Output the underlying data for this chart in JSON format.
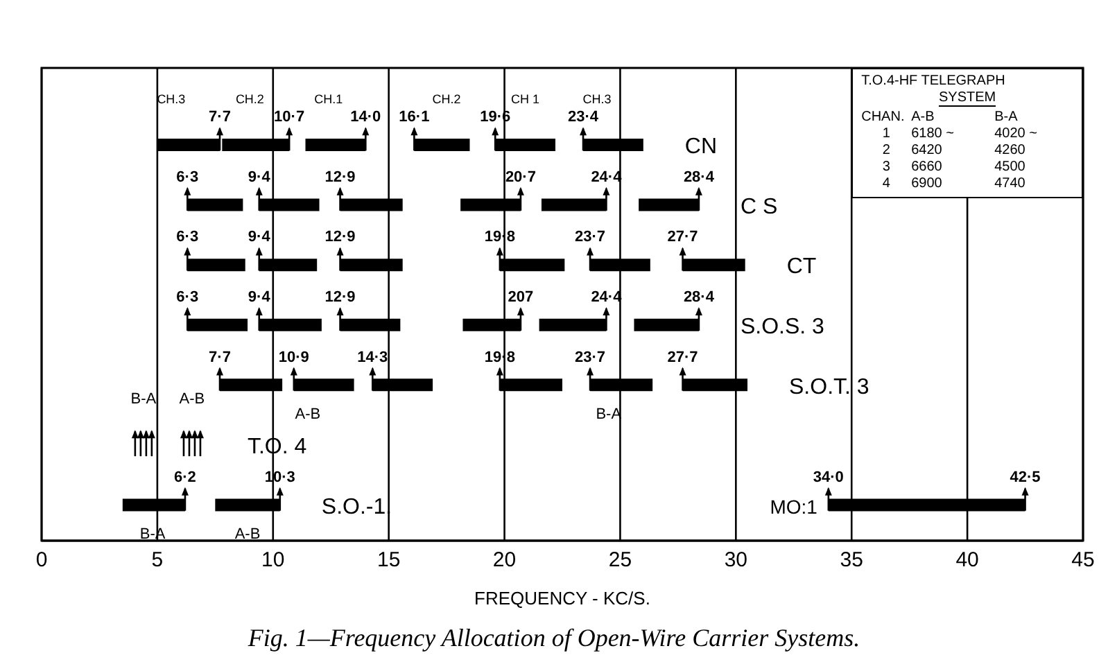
{
  "chart_data": {
    "type": "bar",
    "orientation": "horizontal",
    "title": "Fig. 1—Frequency Allocation of Open-Wire Carrier Systems.",
    "xlabel": "FREQUENCY -  KC/S.",
    "categories": [
      "CN",
      "C S",
      "CT",
      "S.O.S. 3",
      "S.O.T. 3",
      "T.O. 4",
      "S.O.-1."
    ],
    "xlim": [
      0,
      45
    ],
    "xticks": [
      0,
      5,
      10,
      15,
      20,
      25,
      30,
      35,
      40,
      45
    ],
    "grid": "x",
    "tick_labels": "x",
    "series": [
      {
        "color": "#000000",
        "base": [
          5.0,
          6.3,
          6.3,
          6.3,
          7.7,
          null,
          3.5
        ],
        "values": [
          2.7,
          2.4,
          2.5,
          2.6,
          2.7,
          null,
          2.7
        ]
      },
      {
        "color": "#000000",
        "base": [
          7.8,
          9.4,
          9.4,
          9.4,
          10.9,
          null,
          7.5
        ],
        "values": [
          2.9,
          2.6,
          2.5,
          2.7,
          2.6,
          null,
          2.8
        ]
      },
      {
        "color": "#000000",
        "base": [
          11.4,
          12.9,
          12.9,
          12.9,
          14.3,
          null,
          null
        ],
        "values": [
          2.6,
          2.7,
          2.7,
          2.6,
          2.6,
          null,
          null
        ]
      },
      {
        "color": "#000000",
        "base": [
          16.1,
          18.1,
          19.8,
          18.2,
          19.8,
          null,
          null
        ],
        "values": [
          2.4,
          2.6,
          2.8,
          2.5,
          2.7,
          null,
          null
        ]
      },
      {
        "color": "#000000",
        "base": [
          19.6,
          21.6,
          23.7,
          21.5,
          23.7,
          null,
          null
        ],
        "values": [
          2.6,
          2.8,
          2.6,
          2.9,
          2.7,
          null,
          null
        ]
      },
      {
        "color": "#000000",
        "base": [
          23.4,
          25.8,
          27.7,
          25.6,
          27.7,
          null,
          null
        ],
        "values": [
          2.6,
          2.6,
          2.7,
          2.8,
          2.8,
          null,
          null
        ]
      },
      {
        "name": "MO:1",
        "color": "#000000",
        "base": [
          null,
          null,
          null,
          null,
          null,
          null,
          34.0
        ],
        "values": [
          null,
          null,
          null,
          null,
          null,
          null,
          8.5
        ]
      }
    ],
    "annotations": [
      {
        "text": "7·7",
        "x": 7.7,
        "y": "CN"
      },
      {
        "text": "10·7",
        "x": 10.7,
        "y": "CN"
      },
      {
        "text": "14·0",
        "x": 14.0,
        "y": "CN"
      },
      {
        "text": "16·1",
        "x": 16.1,
        "y": "CN"
      },
      {
        "text": "19·6",
        "x": 19.6,
        "y": "CN"
      },
      {
        "text": "23·4",
        "x": 23.4,
        "y": "CN"
      },
      {
        "text": "6·3",
        "x": 6.3,
        "y": "C S"
      },
      {
        "text": "9·4",
        "x": 9.4,
        "y": "C S"
      },
      {
        "text": "12·9",
        "x": 12.9,
        "y": "C S"
      },
      {
        "text": "20·7",
        "x": 20.7,
        "y": "C S"
      },
      {
        "text": "24·4",
        "x": 24.4,
        "y": "C S"
      },
      {
        "text": "28·4",
        "x": 28.4,
        "y": "C S"
      },
      {
        "text": "6·3",
        "x": 6.3,
        "y": "CT"
      },
      {
        "text": "9·4",
        "x": 9.4,
        "y": "CT"
      },
      {
        "text": "12·9",
        "x": 12.9,
        "y": "CT"
      },
      {
        "text": "19·8",
        "x": 19.8,
        "y": "CT"
      },
      {
        "text": "23·7",
        "x": 23.7,
        "y": "CT"
      },
      {
        "text": "27·7",
        "x": 27.7,
        "y": "CT"
      },
      {
        "text": "6·3",
        "x": 6.3,
        "y": "S.O.S. 3"
      },
      {
        "text": "9·4",
        "x": 9.4,
        "y": "S.O.S. 3"
      },
      {
        "text": "12·9",
        "x": 12.9,
        "y": "S.O.S. 3"
      },
      {
        "text": "207",
        "x": 20.7,
        "y": "S.O.S. 3"
      },
      {
        "text": "24·4",
        "x": 24.4,
        "y": "S.O.S. 3"
      },
      {
        "text": "28·4",
        "x": 28.4,
        "y": "S.O.S. 3"
      },
      {
        "text": "7·7",
        "x": 7.7,
        "y": "S.O.T. 3"
      },
      {
        "text": "10·9",
        "x": 10.9,
        "y": "S.O.T. 3"
      },
      {
        "text": "14·3",
        "x": 14.3,
        "y": "S.O.T. 3"
      },
      {
        "text": "19·8",
        "x": 19.8,
        "y": "S.O.T. 3"
      },
      {
        "text": "23·7",
        "x": 23.7,
        "y": "S.O.T. 3"
      },
      {
        "text": "27·7",
        "x": 27.7,
        "y": "S.O.T. 3"
      },
      {
        "text": "6·2",
        "x": 6.2,
        "y": "S.O.-1."
      },
      {
        "text": "10·3",
        "x": 10.3,
        "y": "S.O.-1."
      },
      {
        "text": "34·0",
        "x": 34.0,
        "y": "S.O.-1."
      },
      {
        "text": "42·5",
        "x": 42.5,
        "y": "S.O.-1."
      },
      "CH.3",
      "CH.2",
      "CH.1",
      "CH.2",
      "CH 1",
      "CH.3",
      "A-B",
      "B-A",
      "B-A",
      "A-B",
      "B-A",
      "A-B",
      "T.O.4-HF TELEGRAPH",
      "SYSTEM",
      "CHAN.",
      "A-B",
      "B-A",
      "1",
      "6180 ~",
      "4020 ~",
      "2",
      "6420",
      "4260",
      "3",
      "6660",
      "4500",
      "4",
      "6900",
      "4740"
    ]
  }
}
